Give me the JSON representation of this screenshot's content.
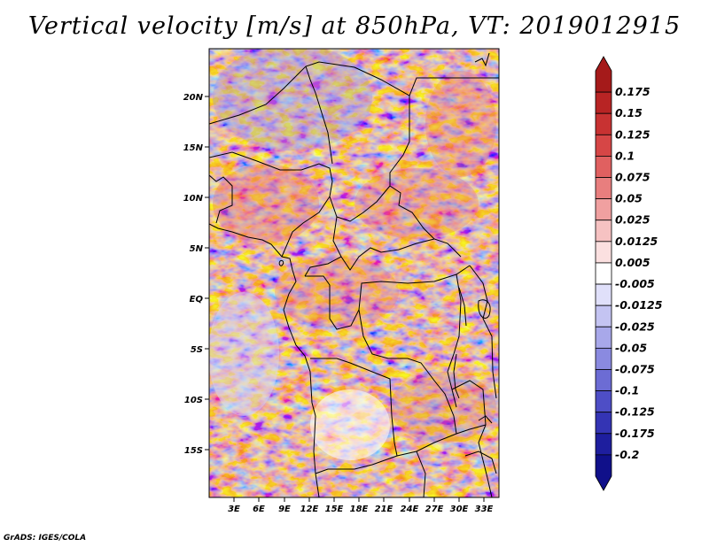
{
  "title": "Vertical velocity [m/s] at 850hPa, VT: 2019012915",
  "credit": "GrADS: IGES/COLA",
  "lat_labels": [
    "20N",
    "15N",
    "10N",
    "5N",
    "EQ",
    "5S",
    "10S",
    "15S"
  ],
  "lon_labels": [
    "3E",
    "6E",
    "9E",
    "12E",
    "15E",
    "18E",
    "21E",
    "24E",
    "27E",
    "30E",
    "33E"
  ],
  "colorbar": {
    "labels": [
      "0.175",
      "0.15",
      "0.125",
      "0.1",
      "0.075",
      "0.05",
      "0.025",
      "0.0125",
      "0.005",
      "-0.005",
      "-0.0125",
      "-0.025",
      "-0.05",
      "-0.075",
      "-0.1",
      "-0.125",
      "-0.175",
      "-0.2"
    ],
    "colors": [
      "#a51a1a",
      "#b82424",
      "#c83232",
      "#d64646",
      "#e06060",
      "#e87e7e",
      "#f0a0a0",
      "#f6c2c2",
      "#fbe0e0",
      "#ffffff",
      "#e0e0fa",
      "#c4c4f2",
      "#a8a8ea",
      "#8a8ae0",
      "#6c6cd4",
      "#4e4ec6",
      "#3434b4",
      "#1e1e9e",
      "#10108a"
    ]
  }
}
